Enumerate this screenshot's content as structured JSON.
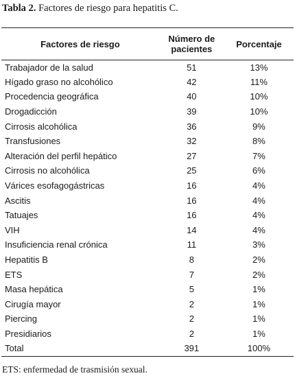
{
  "caption": {
    "label": "Tabla 2.",
    "text": "Factores de riesgo para hepatitis C."
  },
  "table": {
    "headers": [
      "Factores de riesgo",
      "Número de pacientes",
      "Porcentaje"
    ],
    "rows": [
      [
        "Trabajador de la salud",
        "51",
        "13%"
      ],
      [
        "Hígado graso no alcohólico",
        "42",
        "11%"
      ],
      [
        "Procedencia geográfica",
        "40",
        "10%"
      ],
      [
        "Drogadicción",
        "39",
        "10%"
      ],
      [
        "Cirrosis alcohólica",
        "36",
        "9%"
      ],
      [
        "Transfusiones",
        "32",
        "8%"
      ],
      [
        "Alteración del perfil hepático",
        "27",
        "7%"
      ],
      [
        "Cirrosis no alcohólica",
        "25",
        "6%"
      ],
      [
        "Várices esofagogástricas",
        "16",
        "4%"
      ],
      [
        "Ascitis",
        "16",
        "4%"
      ],
      [
        "Tatuajes",
        "16",
        "4%"
      ],
      [
        "VIH",
        "14",
        "4%"
      ],
      [
        "Insuficiencia renal crónica",
        "11",
        "3%"
      ],
      [
        "Hepatitis B",
        "8",
        "2%"
      ],
      [
        "ETS",
        "7",
        "2%"
      ],
      [
        "Masa hepática",
        "5",
        "1%"
      ],
      [
        "Cirugía mayor",
        "2",
        "1%"
      ],
      [
        "Piercing",
        "2",
        "1%"
      ],
      [
        "Presidiarios",
        "2",
        "1%"
      ],
      [
        "Total",
        "391",
        "100%"
      ]
    ]
  },
  "footnote": "ETS: enfermedad de trasmisión sexual."
}
